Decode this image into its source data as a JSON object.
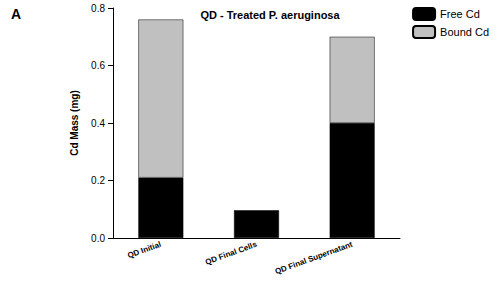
{
  "chart_data": {
    "type": "bar",
    "title": "QD - Treated P. aeruginosa",
    "annotations": [
      "A"
    ],
    "y_label": "Cd Mass (mg)",
    "categories": [
      "QD Initial",
      "QD Final Cells",
      "QD Final Supernatant"
    ],
    "series": [
      {
        "name": "Free Cd",
        "color": "#000000",
        "values": [
          0.21,
          0.095,
          0.4
        ]
      },
      {
        "name": "Bound Cd",
        "color": "#c0c0c0",
        "values": [
          0.55,
          0,
          0.3
        ]
      }
    ],
    "stacked": true,
    "ylim": [
      0,
      0.8
    ],
    "yticks": [
      {
        "value": 0,
        "label": "0.0"
      },
      0.2,
      0.4,
      0.6,
      0.8
    ],
    "grid": false,
    "legend": "upper right"
  }
}
